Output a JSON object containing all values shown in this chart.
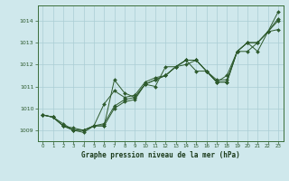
{
  "title": "Graphe pression niveau de la mer (hPa)",
  "bg_color": "#cfe8ec",
  "grid_color": "#aacdd4",
  "line_color": "#2d5a2d",
  "axes_color": "#3a6e3a",
  "tick_color": "#2d5a2d",
  "title_color": "#1a3a1a",
  "xlim": [
    -0.5,
    23.5
  ],
  "ylim": [
    1008.5,
    1014.7
  ],
  "xticks": [
    0,
    1,
    2,
    3,
    4,
    5,
    6,
    7,
    8,
    9,
    10,
    11,
    12,
    13,
    14,
    15,
    16,
    17,
    18,
    19,
    20,
    21,
    22,
    23
  ],
  "yticks": [
    1009,
    1010,
    1011,
    1012,
    1013,
    1014
  ],
  "series": [
    {
      "x": [
        0,
        1,
        2,
        3,
        4,
        5,
        6,
        7,
        8,
        9,
        10,
        11,
        12,
        13,
        14,
        15,
        16,
        17,
        18,
        19,
        20,
        21,
        22,
        23
      ],
      "y": [
        1009.7,
        1009.6,
        1009.2,
        1009.0,
        1009.0,
        1009.2,
        1009.2,
        1010.0,
        1010.3,
        1010.4,
        1011.1,
        1011.3,
        1011.5,
        1011.9,
        1012.2,
        1012.2,
        1011.7,
        1011.2,
        1011.2,
        1012.6,
        1013.0,
        1013.0,
        1013.5,
        1014.4
      ]
    },
    {
      "x": [
        0,
        1,
        2,
        3,
        4,
        5,
        6,
        7,
        8,
        9,
        10,
        11,
        12,
        13,
        14,
        15,
        16,
        17,
        18,
        19,
        20,
        21,
        22,
        23
      ],
      "y": [
        1009.7,
        1009.6,
        1009.3,
        1009.0,
        1008.9,
        1009.2,
        1009.2,
        1011.3,
        1010.7,
        1010.5,
        1011.1,
        1011.0,
        1011.9,
        1011.9,
        1012.0,
        1012.2,
        1011.7,
        1011.3,
        1011.3,
        1012.6,
        1013.0,
        1012.6,
        1013.5,
        1013.6
      ]
    },
    {
      "x": [
        0,
        1,
        2,
        3,
        4,
        5,
        6,
        7,
        8,
        9,
        10,
        11,
        12,
        13,
        14,
        15,
        16,
        17,
        18,
        19,
        20,
        21,
        22,
        23
      ],
      "y": [
        1009.7,
        1009.6,
        1009.2,
        1009.0,
        1009.0,
        1009.2,
        1010.2,
        1010.8,
        1010.5,
        1010.6,
        1011.2,
        1011.4,
        1011.5,
        1011.9,
        1012.2,
        1012.2,
        1011.7,
        1011.2,
        1011.2,
        1012.6,
        1012.6,
        1013.0,
        1013.5,
        1014.1
      ]
    },
    {
      "x": [
        0,
        1,
        2,
        3,
        4,
        5,
        6,
        7,
        8,
        9,
        10,
        11,
        12,
        13,
        14,
        15,
        16,
        17,
        18,
        19,
        20,
        21,
        22,
        23
      ],
      "y": [
        1009.7,
        1009.6,
        1009.2,
        1009.1,
        1009.0,
        1009.2,
        1009.3,
        1010.1,
        1010.4,
        1010.5,
        1011.1,
        1011.3,
        1011.5,
        1011.9,
        1012.2,
        1011.7,
        1011.7,
        1011.2,
        1011.5,
        1012.6,
        1013.0,
        1013.0,
        1013.5,
        1014.0
      ]
    }
  ]
}
